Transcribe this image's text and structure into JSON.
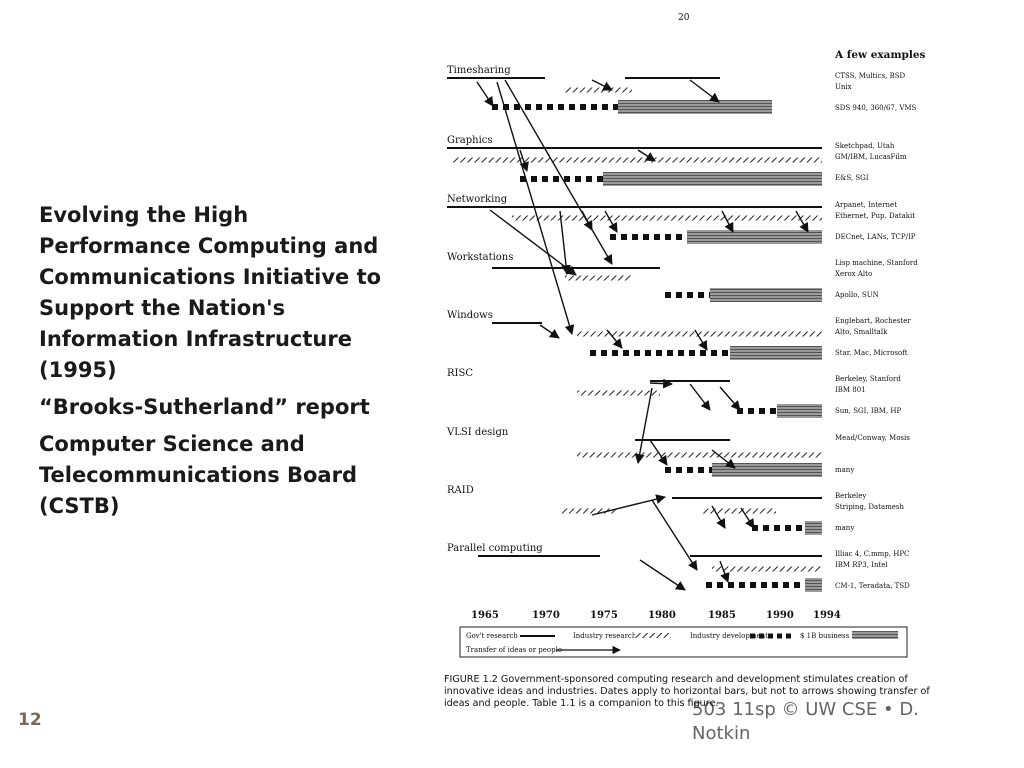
{
  "slide": {
    "bullets": [
      "Evolving the High Performance Computing and Communications Initiative to Support the Nation's Information Infrastructure (1995)",
      "“Brooks-Sutherland” report",
      "Computer Science and Telecommunications Board (CSTB)"
    ],
    "slide_number": "12",
    "footer": "503 11sp © UW CSE  • D. Notkin"
  },
  "figure": {
    "page_number": "20",
    "examples_header": "A few examples",
    "areas": [
      {
        "label": "Timesharing",
        "examples": [
          "CTSS, Multics, BSD",
          "Unix",
          "SDS 940, 360/67, VMS"
        ]
      },
      {
        "label": "Graphics",
        "examples": [
          "Sketchpad, Utah",
          "GM/IBM, LucasFilm",
          "E&S, SGI"
        ]
      },
      {
        "label": "Networking",
        "examples": [
          "Arpanet, Internet",
          "Ethernet, Pup, Datakit",
          "DECnet, LANs, TCP/IP"
        ]
      },
      {
        "label": "Workstations",
        "examples": [
          "Lisp machine, Stanford",
          "Xerox Alto",
          "Apollo, SUN"
        ]
      },
      {
        "label": "Windows",
        "examples": [
          "Englebart, Rochester",
          "Alto, Smalltalk",
          "Star, Mac, Microsoft"
        ]
      },
      {
        "label": "RISC",
        "examples": [
          "Berkeley, Stanford",
          "IBM 801",
          "Sun, SGI, IBM, HP"
        ]
      },
      {
        "label": "VLSI design",
        "examples": [
          "Mead/Conway, Mosis",
          "many"
        ]
      },
      {
        "label": "RAID",
        "examples": [
          "Berkeley",
          "Striping, Datamesh",
          "many"
        ]
      },
      {
        "label": "Parallel computing",
        "examples": [
          "Illiac 4, C.mmp, HPC",
          "IBM RP3, Intel",
          "CM-1, Teradata, TSD"
        ]
      }
    ],
    "years": [
      "1965",
      "1970",
      "1975",
      "1980",
      "1985",
      "1990",
      "1994"
    ],
    "legend": {
      "govt": "Gov't research",
      "industry_research": "Industry research",
      "industry_dev": "Industry development",
      "business": "$ 1B business",
      "transfer": "Transfer of ideas or people"
    },
    "caption": [
      "FIGURE 1.2  Government-sponsored computing research and development stimulates creation of",
      "innovative ideas and industries.  Dates apply to horizontal bars, but not to arrows showing transfer of",
      "ideas and people.  Table 1.1 is a companion to this figure."
    ]
  }
}
